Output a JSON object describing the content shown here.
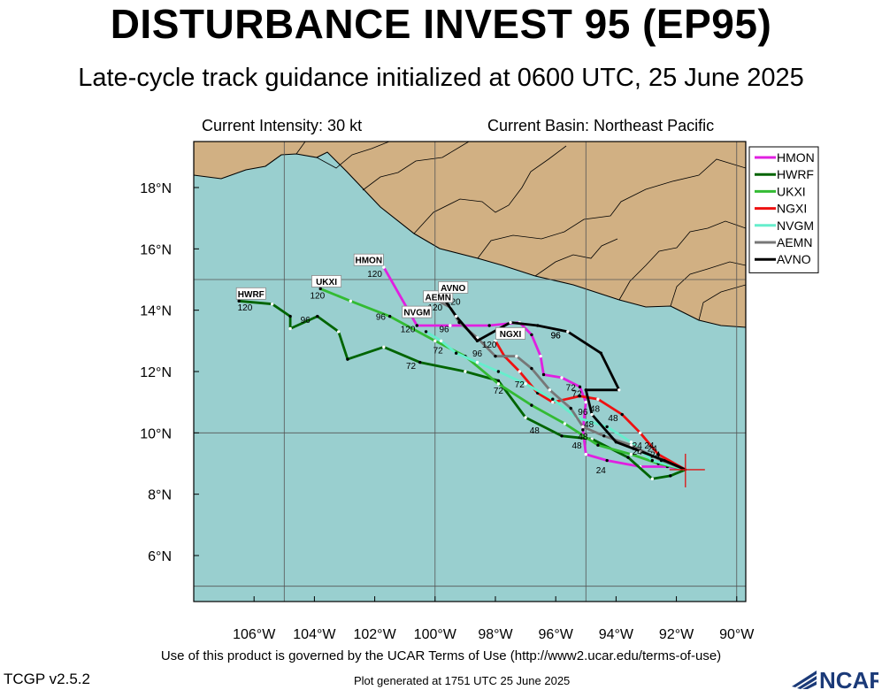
{
  "header": {
    "title": "DISTURBANCE INVEST 95 (EP95)",
    "subtitle": "Late-cycle track guidance initialized at 0600 UTC, 25 June 2025",
    "current_intensity": "Current Intensity: 30 kt",
    "current_basin": "Current Basin: Northeast Pacific"
  },
  "footer": {
    "terms": "Use of this product is governed by the UCAR Terms of Use (http://www2.ucar.edu/terms-of-use)",
    "version": "TCGP v2.5.2",
    "generated": "Plot generated at 1751 UTC   25 June 2025",
    "logo_text": "NCAR"
  },
  "colors": {
    "ocean": "#99cfcf",
    "land": "#d1b083",
    "grid": "#555555"
  },
  "chart_data": {
    "type": "line",
    "x_axis": {
      "lim": [
        -108,
        -89.7
      ],
      "ticks": [
        -106,
        -104,
        -102,
        -100,
        -98,
        -96,
        -94,
        -92,
        -90
      ],
      "tick_labels": [
        "106°W",
        "104°W",
        "102°W",
        "100°W",
        "98°W",
        "96°W",
        "94°W",
        "92°W",
        "90°W"
      ]
    },
    "y_axis": {
      "lim": [
        4.5,
        19.5
      ],
      "ticks": [
        6,
        8,
        10,
        12,
        14,
        16,
        18
      ],
      "tick_labels": [
        "6°N",
        "8°N",
        "10°N",
        "12°N",
        "14°N",
        "16°N",
        "18°N"
      ]
    },
    "grid": true,
    "legend_position": "top-right",
    "initial_position": {
      "lon": -91.7,
      "lat": 8.8
    },
    "series": [
      {
        "name": "HMON",
        "color": "#e020e0",
        "points": [
          [
            -91.7,
            8.8
          ],
          [
            -92.3,
            8.9
          ],
          [
            -93.2,
            8.9
          ],
          [
            -94.3,
            9.1
          ],
          [
            -95.0,
            9.3
          ],
          [
            -95.1,
            10.1
          ],
          [
            -95.0,
            11.0
          ],
          [
            -95.2,
            11.5
          ],
          [
            -95.8,
            11.8
          ],
          [
            -96.4,
            11.9
          ],
          [
            -96.5,
            12.5
          ],
          [
            -96.8,
            13.2
          ],
          [
            -97.2,
            13.6
          ],
          [
            -98.2,
            13.5
          ],
          [
            -99.5,
            13.5
          ],
          [
            -100.6,
            13.5
          ],
          [
            -101.7,
            15.4
          ]
        ],
        "labels": [
          [
            "24",
            -94.5,
            8.8
          ],
          [
            "72",
            -95.3,
            11.3
          ],
          [
            "96",
            -96.0,
            13.2
          ],
          [
            "120",
            -102.0,
            15.2
          ]
        ]
      },
      {
        "name": "HWRF",
        "color": "#006400",
        "points": [
          [
            -91.7,
            8.8
          ],
          [
            -92.2,
            8.6
          ],
          [
            -92.8,
            8.5
          ],
          [
            -93.6,
            9.2
          ],
          [
            -94.8,
            9.8
          ],
          [
            -95.8,
            9.9
          ],
          [
            -97.0,
            10.5
          ],
          [
            -97.9,
            11.7
          ],
          [
            -99.0,
            12.0
          ],
          [
            -100.5,
            12.3
          ],
          [
            -101.7,
            12.8
          ],
          [
            -102.9,
            12.4
          ],
          [
            -103.2,
            13.3
          ],
          [
            -103.9,
            13.8
          ],
          [
            -104.8,
            13.4
          ],
          [
            -104.8,
            13.8
          ],
          [
            -105.4,
            14.2
          ],
          [
            -106.5,
            14.3
          ]
        ],
        "labels": [
          [
            "24",
            -92.7,
            9.3
          ],
          [
            "48",
            -96.7,
            10.1
          ],
          [
            "72",
            -100.8,
            12.2
          ],
          [
            "96",
            -104.3,
            13.7
          ],
          [
            "120",
            -106.3,
            14.1
          ]
        ]
      },
      {
        "name": "UKXI",
        "color": "#33bb33",
        "points": [
          [
            -91.7,
            8.8
          ],
          [
            -92.6,
            9.0
          ],
          [
            -93.5,
            9.3
          ],
          [
            -94.6,
            9.6
          ],
          [
            -95.7,
            10.3
          ],
          [
            -96.8,
            10.9
          ],
          [
            -97.9,
            11.6
          ],
          [
            -99.0,
            12.5
          ],
          [
            -100.0,
            13.0
          ],
          [
            -101.5,
            13.8
          ],
          [
            -102.8,
            14.3
          ],
          [
            -103.8,
            14.7
          ]
        ],
        "labels": [
          [
            "48",
            -95.3,
            9.6
          ],
          [
            "72",
            -97.9,
            11.4
          ],
          [
            "96",
            -101.8,
            13.8
          ],
          [
            "120",
            -103.9,
            14.5
          ]
        ]
      },
      {
        "name": "NGXI",
        "color": "#ee1111",
        "points": [
          [
            -91.7,
            8.8
          ],
          [
            -92.6,
            9.3
          ],
          [
            -93.2,
            10.0
          ],
          [
            -93.8,
            10.6
          ],
          [
            -94.6,
            11.1
          ],
          [
            -95.2,
            11.2
          ],
          [
            -96.1,
            11.0
          ],
          [
            -96.6,
            11.3
          ],
          [
            -97.2,
            12.0
          ],
          [
            -97.7,
            12.5
          ],
          [
            -98.0,
            13.0
          ]
        ],
        "labels": [
          [
            "24",
            -92.8,
            9.5
          ],
          [
            "48",
            -94.1,
            10.5
          ],
          [
            "72",
            -97.2,
            11.6
          ],
          [
            "96",
            -95.1,
            10.7
          ],
          [
            "120",
            -98.2,
            12.9
          ]
        ]
      },
      {
        "name": "NVGM",
        "color": "#66eecc",
        "points": [
          [
            -91.7,
            8.8
          ],
          [
            -92.8,
            9.1
          ],
          [
            -93.5,
            9.7
          ],
          [
            -94.3,
            10.2
          ],
          [
            -95.3,
            10.5
          ],
          [
            -96.1,
            11.1
          ],
          [
            -97.0,
            11.6
          ],
          [
            -97.9,
            12.0
          ],
          [
            -98.6,
            12.3
          ],
          [
            -99.3,
            12.6
          ],
          [
            -99.8,
            13.0
          ],
          [
            -100.3,
            13.3
          ]
        ],
        "labels": [
          [
            "24",
            -93.3,
            9.6
          ],
          [
            "48",
            -94.9,
            10.3
          ],
          [
            "72",
            -99.9,
            12.7
          ],
          [
            "96",
            -99.7,
            13.4
          ],
          [
            "120",
            -100.9,
            13.4
          ]
        ]
      },
      {
        "name": "AEMN",
        "color": "#777777",
        "points": [
          [
            -91.7,
            8.8
          ],
          [
            -92.5,
            9.1
          ],
          [
            -93.5,
            9.6
          ],
          [
            -94.4,
            9.9
          ],
          [
            -95.1,
            10.2
          ],
          [
            -95.5,
            10.8
          ],
          [
            -96.2,
            11.4
          ],
          [
            -96.8,
            12.1
          ],
          [
            -97.3,
            12.5
          ],
          [
            -98.0,
            12.5
          ],
          [
            -98.6,
            13.1
          ],
          [
            -99.2,
            13.6
          ],
          [
            -99.5,
            14.1
          ],
          [
            -99.9,
            14.3
          ]
        ],
        "labels": [
          [
            "24",
            -93.3,
            9.4
          ],
          [
            "48",
            -95.1,
            9.9
          ],
          [
            "72",
            -95.5,
            11.5
          ],
          [
            "96",
            -98.6,
            12.6
          ],
          [
            "120",
            -100.0,
            14.1
          ]
        ]
      },
      {
        "name": "AVNO",
        "color": "#000000",
        "points": [
          [
            -91.7,
            8.8
          ],
          [
            -92.4,
            9.1
          ],
          [
            -93.2,
            9.4
          ],
          [
            -94.0,
            9.7
          ],
          [
            -94.8,
            10.6
          ],
          [
            -95.0,
            11.4
          ],
          [
            -93.9,
            11.4
          ],
          [
            -94.5,
            12.6
          ],
          [
            -95.6,
            13.3
          ],
          [
            -96.6,
            13.5
          ],
          [
            -97.5,
            13.6
          ],
          [
            -98.6,
            13.0
          ],
          [
            -99.3,
            13.8
          ],
          [
            -99.8,
            14.5
          ]
        ],
        "labels": [
          [
            "24",
            -92.9,
            9.6
          ],
          [
            "48",
            -94.7,
            10.8
          ],
          [
            "96",
            -96.0,
            13.2
          ],
          [
            "120",
            -99.4,
            14.3
          ]
        ]
      }
    ],
    "model_end_tags": [
      {
        "text": "HMON",
        "lon": -102.2,
        "lat": 15.6
      },
      {
        "text": "HWRF",
        "lon": -106.1,
        "lat": 14.5
      },
      {
        "text": "UKXI",
        "lon": -103.6,
        "lat": 14.9
      },
      {
        "text": "NGXI",
        "lon": -97.5,
        "lat": 13.2
      },
      {
        "text": "NVGM",
        "lon": -100.6,
        "lat": 13.9
      },
      {
        "text": "AEMN",
        "lon": -99.9,
        "lat": 14.4
      },
      {
        "text": "AVNO",
        "lon": -99.4,
        "lat": 14.7
      }
    ]
  }
}
